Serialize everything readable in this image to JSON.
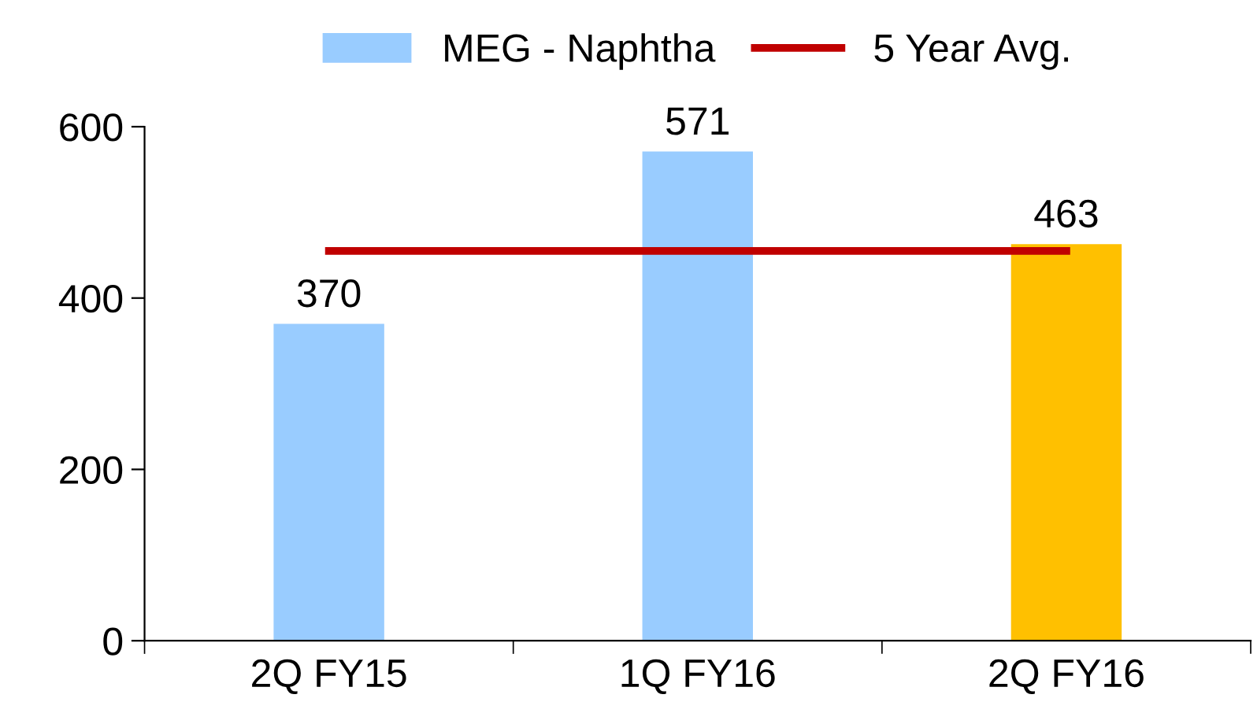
{
  "chart_data": {
    "type": "bar",
    "categories": [
      "2Q FY15",
      "1Q FY16",
      "2Q FY16"
    ],
    "series": [
      {
        "name": "MEG - Naphtha",
        "color": "#99ccff",
        "colors": [
          "#99ccff",
          "#99ccff",
          "#ffc000"
        ],
        "values": [
          370,
          571,
          463
        ],
        "value_labels": [
          "370",
          "571",
          "463"
        ]
      },
      {
        "name": "5 Year Avg.",
        "type": "line",
        "color": "#c00000",
        "values": [
          455,
          455,
          455
        ]
      }
    ],
    "ylim": [
      0,
      600
    ],
    "yticks": [
      0,
      200,
      400,
      600
    ],
    "grid": false,
    "legend": "top",
    "marker": "none",
    "line_style": "solid"
  }
}
